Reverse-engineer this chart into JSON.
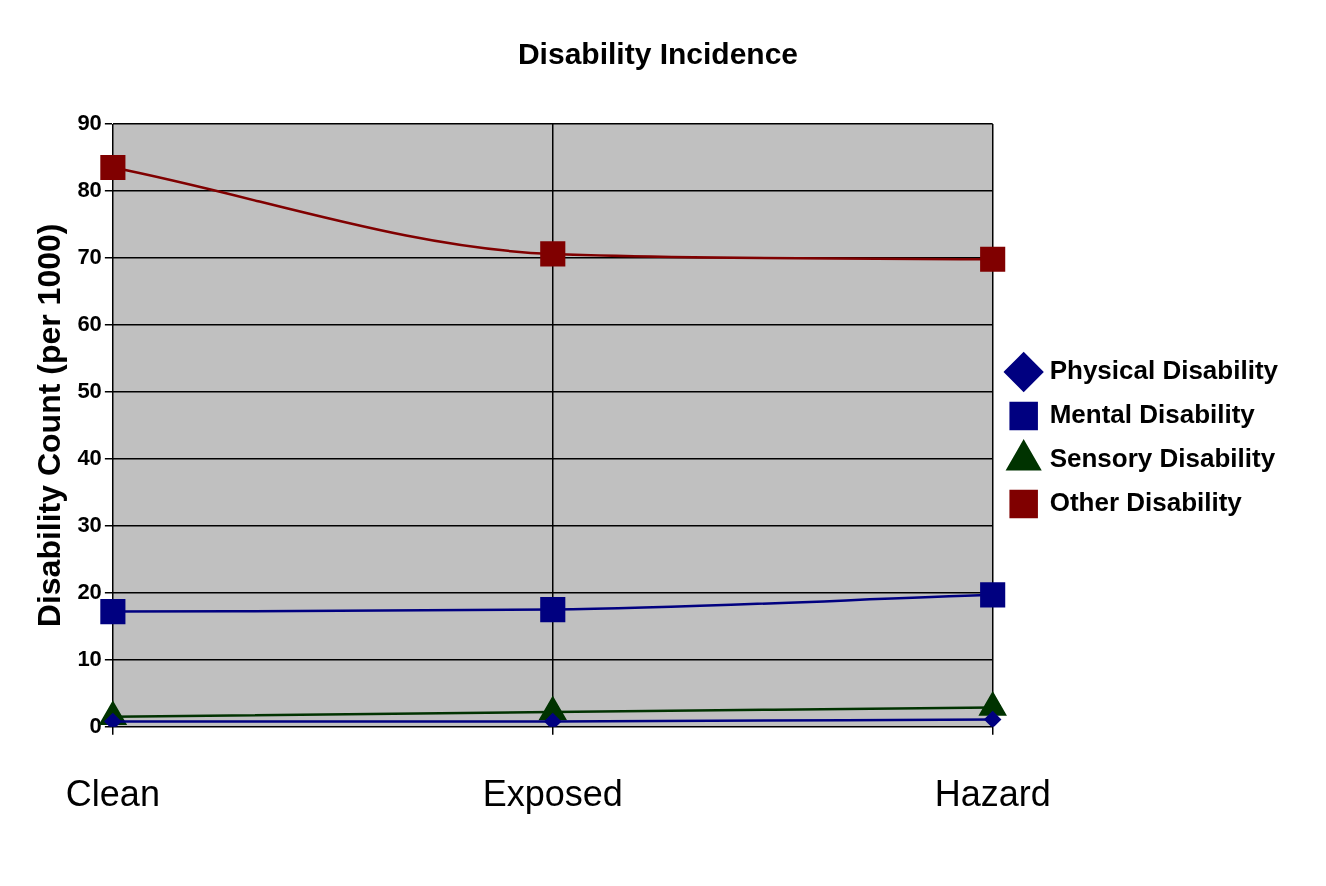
{
  "chart_data": {
    "type": "line",
    "title": "Disability Incidence",
    "ylabel": "Disability Count (per 1000)",
    "categories": [
      "Clean",
      "Exposed",
      "Hazard"
    ],
    "series": [
      {
        "name": "Physical Disability",
        "color": "#000080",
        "marker": "diamond",
        "values": [
          0.8,
          0.8,
          1.1
        ]
      },
      {
        "name": "Mental Disability",
        "color": "#000080",
        "marker": "square",
        "values": [
          17.2,
          17.5,
          19.7
        ]
      },
      {
        "name": "Sensory Disability",
        "color": "#003300",
        "marker": "triangle",
        "values": [
          1.5,
          2.2,
          2.9
        ]
      },
      {
        "name": "Other Disability",
        "color": "#800000",
        "marker": "square",
        "values": [
          83.5,
          70.6,
          69.8
        ]
      }
    ],
    "ylim": [
      0,
      90
    ],
    "yticks": [
      0,
      10,
      20,
      30,
      40,
      50,
      60,
      70,
      80,
      90
    ],
    "grid": true,
    "legend": "right"
  }
}
